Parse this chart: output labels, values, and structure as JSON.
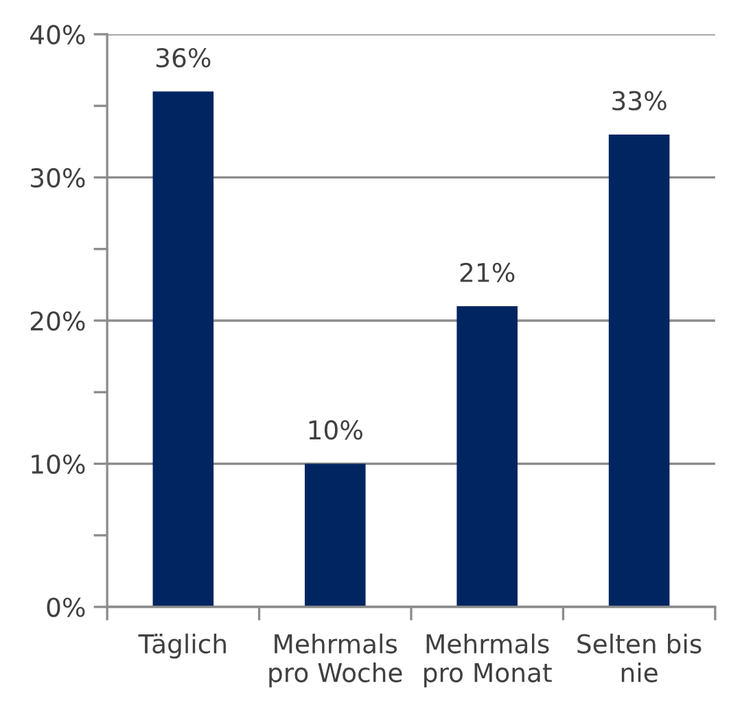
{
  "chart_data": {
    "type": "bar",
    "categories": [
      "Täglich",
      "Mehrmals\npro Woche",
      "Mehrmals\npro Monat",
      "Selten bis\nnie"
    ],
    "values": [
      36,
      10,
      21,
      33
    ],
    "color": "#002561",
    "value_labels": [
      "36%",
      "10%",
      "21%",
      "33%"
    ],
    "ylim": [
      0,
      40
    ],
    "yticks": [
      {
        "value": 0,
        "label": "0%"
      },
      {
        "value": 5,
        "label": null
      },
      {
        "value": 10,
        "label": "10%"
      },
      {
        "value": 15,
        "label": null
      },
      {
        "value": 20,
        "label": "20%"
      },
      {
        "value": 25,
        "label": null
      },
      {
        "value": 30,
        "label": "30%"
      },
      {
        "value": 35,
        "label": null
      },
      {
        "value": 40,
        "label": "40%"
      }
    ],
    "grid": "y",
    "legend": false
  }
}
